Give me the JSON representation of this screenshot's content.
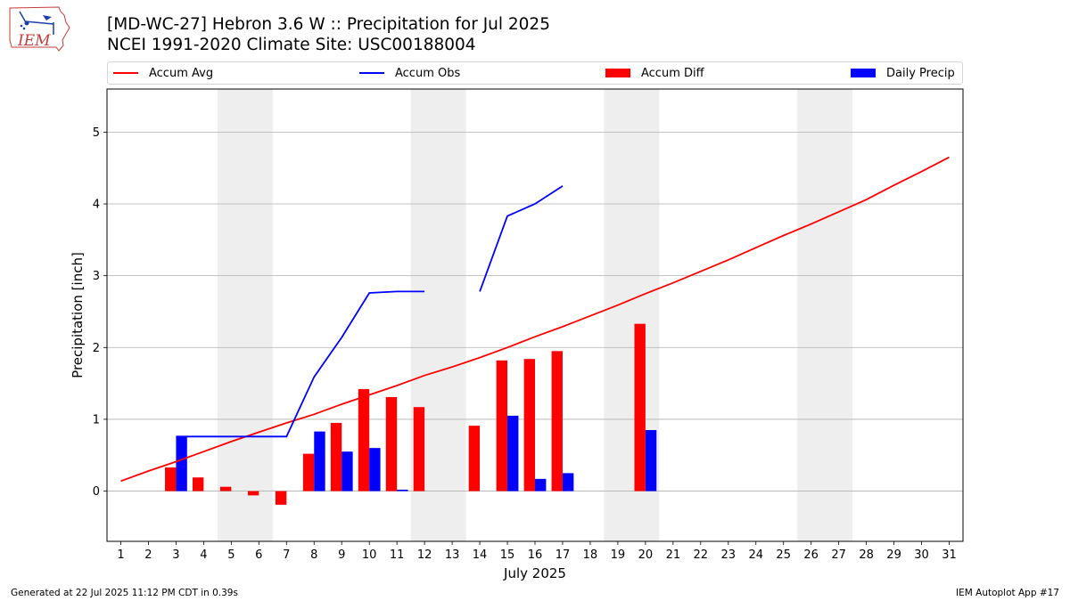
{
  "header": {
    "logo_text": "IEM",
    "title": "[MD-WC-27] Hebron 3.6 W :: Precipitation for Jul 2025",
    "subtitle": "NCEI 1991-2020 Climate Site: USC00188004"
  },
  "footer": {
    "generated": "Generated at 22 Jul 2025 11:12 PM CDT in 0.39s",
    "app": "IEM Autoplot App #17"
  },
  "colors": {
    "avg": "#ff0000",
    "obs": "#0000ff",
    "diff": "#ff0000",
    "daily": "#0000ff",
    "weekend_band": "#eeeeee",
    "grid": "#b0b0b0"
  },
  "chart_data": {
    "type": "bar",
    "xlabel": "July 2025",
    "ylabel": "Precipitation [inch]",
    "xlim": [
      0.5,
      31.5
    ],
    "ylim": [
      -0.7,
      5.6
    ],
    "yticks": [
      0,
      1,
      2,
      3,
      4,
      5
    ],
    "grid": true,
    "legend_position": "top",
    "legend": [
      "Accum Avg",
      "Accum Obs",
      "Accum Diff",
      "Daily Precip"
    ],
    "weekend_bands": [
      [
        4.5,
        6.5
      ],
      [
        11.5,
        13.5
      ],
      [
        18.5,
        20.5
      ],
      [
        25.5,
        27.5
      ]
    ],
    "days": [
      1,
      2,
      3,
      4,
      5,
      6,
      7,
      8,
      9,
      10,
      11,
      12,
      13,
      14,
      15,
      16,
      17,
      18,
      19,
      20,
      21,
      22,
      23,
      24,
      25,
      26,
      27,
      28,
      29,
      30,
      31
    ],
    "series": [
      {
        "name": "Accum Avg",
        "type": "line",
        "values": [
          0.14,
          0.28,
          0.41,
          0.55,
          0.69,
          0.82,
          0.95,
          1.07,
          1.21,
          1.34,
          1.47,
          1.61,
          1.73,
          1.86,
          2.0,
          2.15,
          2.29,
          2.44,
          2.59,
          2.75,
          2.9,
          3.06,
          3.22,
          3.39,
          3.56,
          3.72,
          3.89,
          4.06,
          4.26,
          4.45,
          4.65
        ]
      },
      {
        "name": "Accum Obs",
        "type": "line",
        "values": [
          null,
          null,
          0.76,
          0.76,
          0.76,
          0.76,
          0.76,
          1.59,
          2.14,
          2.76,
          2.78,
          2.78,
          null,
          2.78,
          3.83,
          4.0,
          4.25,
          null,
          null,
          null,
          null,
          null,
          null,
          null,
          null,
          null,
          null,
          null,
          null,
          null,
          null
        ]
      },
      {
        "name": "Accum Diff",
        "type": "bar",
        "values": [
          null,
          null,
          0.33,
          0.19,
          0.06,
          -0.06,
          -0.19,
          0.52,
          0.95,
          1.42,
          1.31,
          1.17,
          null,
          0.91,
          1.82,
          1.84,
          1.95,
          null,
          null,
          2.33,
          null,
          null,
          null,
          null,
          null,
          null,
          null,
          null,
          null,
          null,
          null
        ]
      },
      {
        "name": "Daily Precip",
        "type": "bar",
        "values": [
          null,
          null,
          0.76,
          null,
          null,
          null,
          null,
          0.83,
          0.55,
          0.6,
          0.02,
          null,
          null,
          null,
          1.05,
          0.17,
          0.25,
          null,
          null,
          0.85,
          null,
          null,
          null,
          null,
          null,
          null,
          null,
          null,
          null,
          null,
          null
        ]
      }
    ]
  }
}
